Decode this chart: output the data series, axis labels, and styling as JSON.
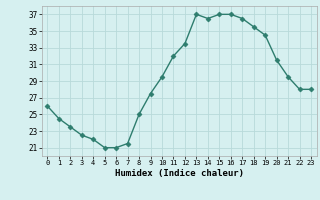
{
  "x": [
    0,
    1,
    2,
    3,
    4,
    5,
    6,
    7,
    8,
    9,
    10,
    11,
    12,
    13,
    14,
    15,
    16,
    17,
    18,
    19,
    20,
    21,
    22,
    23
  ],
  "y": [
    26,
    24.5,
    23.5,
    22.5,
    22,
    21,
    21,
    21.5,
    25,
    27.5,
    29.5,
    32,
    33.5,
    37,
    36.5,
    37,
    37,
    36.5,
    35.5,
    34.5,
    31.5,
    29.5,
    28,
    28
  ],
  "line_color": "#2e7d6e",
  "marker": "D",
  "marker_size": 2.5,
  "bg_color": "#d6f0f0",
  "grid_color": "#b8dada",
  "xlabel": "Humidex (Indice chaleur)",
  "xlim": [
    -0.5,
    23.5
  ],
  "ylim": [
    20,
    38
  ],
  "yticks": [
    21,
    23,
    25,
    27,
    29,
    31,
    33,
    35,
    37
  ],
  "xticks": [
    0,
    1,
    2,
    3,
    4,
    5,
    6,
    7,
    8,
    9,
    10,
    11,
    12,
    13,
    14,
    15,
    16,
    17,
    18,
    19,
    20,
    21,
    22,
    23
  ]
}
